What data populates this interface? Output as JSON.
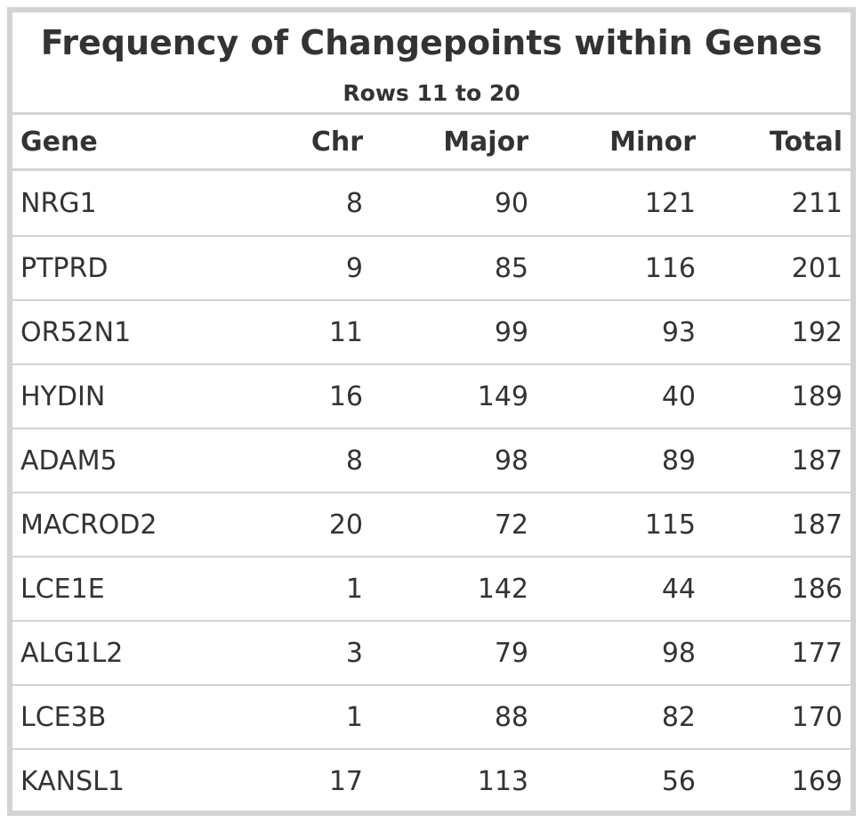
{
  "chart_data": {
    "type": "table",
    "title": "Frequency of Changepoints within Genes",
    "subtitle": "Rows 11 to 20",
    "columns": [
      "Gene",
      "Chr",
      "Major",
      "Minor",
      "Total"
    ],
    "rows": [
      {
        "gene": "NRG1",
        "chr": "8",
        "major": "90",
        "minor": "121",
        "total": "211"
      },
      {
        "gene": "PTPRD",
        "chr": "9",
        "major": "85",
        "minor": "116",
        "total": "201"
      },
      {
        "gene": "OR52N1",
        "chr": "11",
        "major": "99",
        "minor": "93",
        "total": "192"
      },
      {
        "gene": "HYDIN",
        "chr": "16",
        "major": "149",
        "minor": "40",
        "total": "189"
      },
      {
        "gene": "ADAM5",
        "chr": "8",
        "major": "98",
        "minor": "89",
        "total": "187"
      },
      {
        "gene": "MACROD2",
        "chr": "20",
        "major": "72",
        "minor": "115",
        "total": "187"
      },
      {
        "gene": "LCE1E",
        "chr": "1",
        "major": "142",
        "minor": "44",
        "total": "186"
      },
      {
        "gene": "ALG1L2",
        "chr": "3",
        "major": "79",
        "minor": "98",
        "total": "177"
      },
      {
        "gene": "LCE3B",
        "chr": "1",
        "major": "88",
        "minor": "82",
        "total": "170"
      },
      {
        "gene": "KANSL1",
        "chr": "17",
        "major": "113",
        "minor": "56",
        "total": "169"
      }
    ]
  },
  "colors": {
    "text": "#333333",
    "border": "#d3d3d3",
    "background": "#ffffff"
  }
}
